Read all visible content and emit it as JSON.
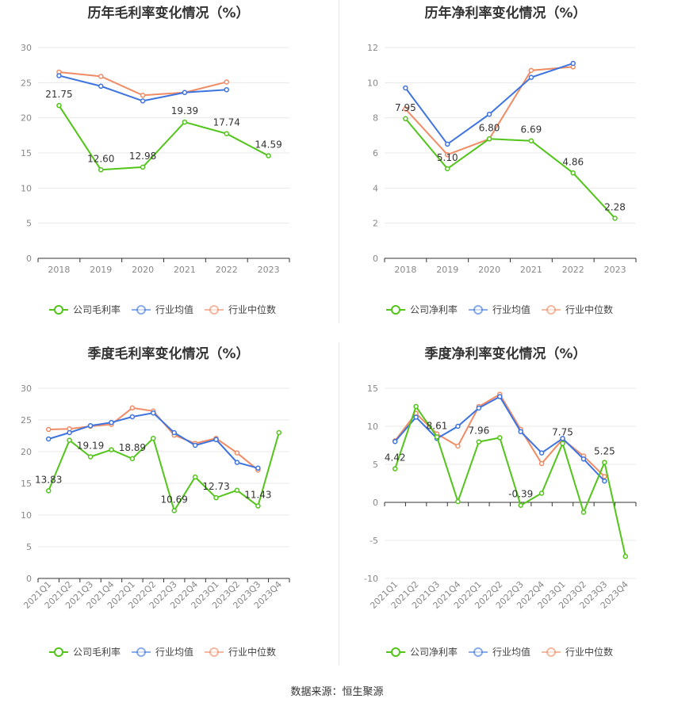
{
  "source": "数据来源：恒生聚源",
  "colors": {
    "company": "#52c41a",
    "avg": "#3d74e0",
    "median": "#f08c65",
    "grid": "#e8e8e8",
    "axis": "#333333",
    "label": "#888888"
  },
  "chart_data": [
    {
      "type": "line",
      "title": "历年毛利率变化情况（%）",
      "categories": [
        "2018",
        "2019",
        "2020",
        "2021",
        "2022",
        "2023"
      ],
      "ylim": [
        0,
        30
      ],
      "yticks": [
        0,
        5,
        10,
        15,
        20,
        25,
        30
      ],
      "rotate_x": false,
      "series": [
        {
          "name": "公司毛利率",
          "key": "company",
          "values": [
            21.75,
            12.6,
            12.98,
            19.39,
            17.74,
            14.59
          ],
          "labels": [
            "21.75",
            "12.60",
            "12.98",
            "19.39",
            "17.74",
            "14.59"
          ]
        },
        {
          "name": "行业均值",
          "key": "avg",
          "values": [
            26.0,
            24.5,
            22.4,
            23.6,
            24.0,
            null
          ]
        },
        {
          "name": "行业中位数",
          "key": "median",
          "values": [
            26.5,
            25.9,
            23.2,
            23.6,
            25.1,
            null
          ]
        }
      ]
    },
    {
      "type": "line",
      "title": "历年净利率变化情况（%）",
      "categories": [
        "2018",
        "2019",
        "2020",
        "2021",
        "2022",
        "2023"
      ],
      "ylim": [
        0,
        12
      ],
      "yticks": [
        0,
        2,
        4,
        6,
        8,
        10,
        12
      ],
      "rotate_x": false,
      "series": [
        {
          "name": "公司净利率",
          "key": "company",
          "values": [
            7.95,
            5.1,
            6.8,
            6.69,
            4.86,
            2.28
          ],
          "labels": [
            "7.95",
            "5.10",
            "6.80",
            "6.69",
            "4.86",
            "2.28"
          ]
        },
        {
          "name": "行业均值",
          "key": "avg",
          "values": [
            9.7,
            6.5,
            8.2,
            10.3,
            11.1,
            null
          ]
        },
        {
          "name": "行业中位数",
          "key": "median",
          "values": [
            8.5,
            5.9,
            6.8,
            10.7,
            10.9,
            null
          ]
        }
      ]
    },
    {
      "type": "line",
      "title": "季度毛利率变化情况（%）",
      "categories": [
        "2021Q1",
        "2021Q2",
        "2021Q3",
        "2021Q4",
        "2022Q1",
        "2022Q2",
        "2022Q3",
        "2022Q4",
        "2023Q1",
        "2023Q2",
        "2023Q3",
        "2023Q4"
      ],
      "ylim": [
        0,
        30
      ],
      "yticks": [
        0,
        5,
        10,
        15,
        20,
        25,
        30
      ],
      "rotate_x": true,
      "series": [
        {
          "name": "公司毛利率",
          "key": "company",
          "values": [
            13.83,
            21.8,
            19.19,
            20.3,
            18.89,
            22.1,
            10.69,
            16.0,
            12.73,
            13.9,
            11.43,
            23.0
          ],
          "labels": [
            "13.83",
            "",
            "19.19",
            "",
            "18.89",
            "",
            "10.69",
            "",
            "12.73",
            "",
            "11.43",
            ""
          ]
        },
        {
          "name": "行业均值",
          "key": "avg",
          "values": [
            22.0,
            23.0,
            24.1,
            24.6,
            25.5,
            26.1,
            23.0,
            21.0,
            21.9,
            18.3,
            17.4,
            null
          ]
        },
        {
          "name": "行业中位数",
          "key": "median",
          "values": [
            23.5,
            23.6,
            24.0,
            24.3,
            26.9,
            26.4,
            22.6,
            21.3,
            22.1,
            19.8,
            17.1,
            null
          ]
        }
      ]
    },
    {
      "type": "line",
      "title": "季度净利率变化情况（%）",
      "categories": [
        "2021Q1",
        "2021Q2",
        "2021Q3",
        "2021Q4",
        "2022Q1",
        "2022Q2",
        "2022Q3",
        "2022Q4",
        "2023Q1",
        "2023Q2",
        "2023Q3",
        "2023Q4"
      ],
      "ylim": [
        -10,
        15
      ],
      "yticks": [
        -10,
        -5,
        0,
        5,
        10,
        15
      ],
      "rotate_x": true,
      "series": [
        {
          "name": "公司净利率",
          "key": "company",
          "values": [
            4.42,
            12.6,
            8.61,
            0.1,
            7.96,
            8.5,
            -0.39,
            1.2,
            7.75,
            -1.3,
            5.25,
            -7.1
          ],
          "labels": [
            "4.42",
            "",
            "8.61",
            "",
            "7.96",
            "",
            "-0.39",
            "",
            "7.75",
            "",
            "5.25",
            ""
          ]
        },
        {
          "name": "行业均值",
          "key": "avg",
          "values": [
            8.0,
            11.2,
            8.4,
            10.0,
            12.4,
            13.9,
            9.3,
            6.5,
            8.4,
            5.7,
            2.8,
            null
          ]
        },
        {
          "name": "行业中位数",
          "key": "median",
          "values": [
            8.1,
            11.7,
            9.0,
            7.4,
            12.6,
            14.2,
            9.6,
            5.1,
            8.3,
            6.1,
            3.4,
            null
          ]
        }
      ]
    }
  ]
}
